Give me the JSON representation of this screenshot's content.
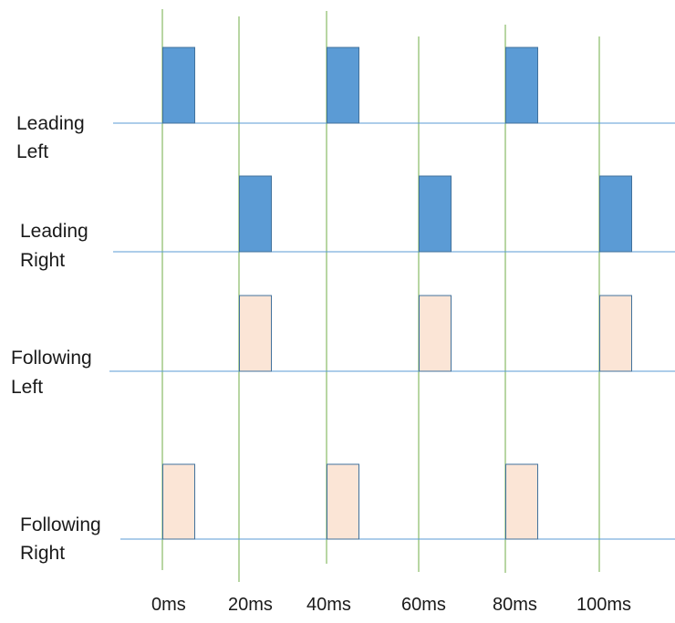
{
  "chart_data": {
    "type": "timing-diagram",
    "time_axis": [
      "0ms",
      "20ms",
      "40ms",
      "60ms",
      "80ms",
      "100ms"
    ],
    "rows": [
      {
        "label_lines": [
          "Leading",
          "Left"
        ],
        "pulses_at": [
          "0ms",
          "40ms",
          "80ms"
        ],
        "color": "#5b9bd5"
      },
      {
        "label_lines": [
          "Leading",
          "Right"
        ],
        "pulses_at": [
          "20ms",
          "60ms",
          "100ms"
        ],
        "color": "#5b9bd5"
      },
      {
        "label_lines": [
          "Following",
          "Left"
        ],
        "pulses_at": [
          "20ms",
          "60ms",
          "100ms"
        ],
        "color": "#fbe5d6"
      },
      {
        "label_lines": [
          "Following",
          "Right"
        ],
        "pulses_at": [
          "0ms",
          "40ms",
          "80ms"
        ],
        "color": "#fbe5d6"
      }
    ],
    "colors": {
      "baseline": "#5b9bd5",
      "gridline": "#70ad47",
      "pulse_border": "#41719c"
    }
  }
}
